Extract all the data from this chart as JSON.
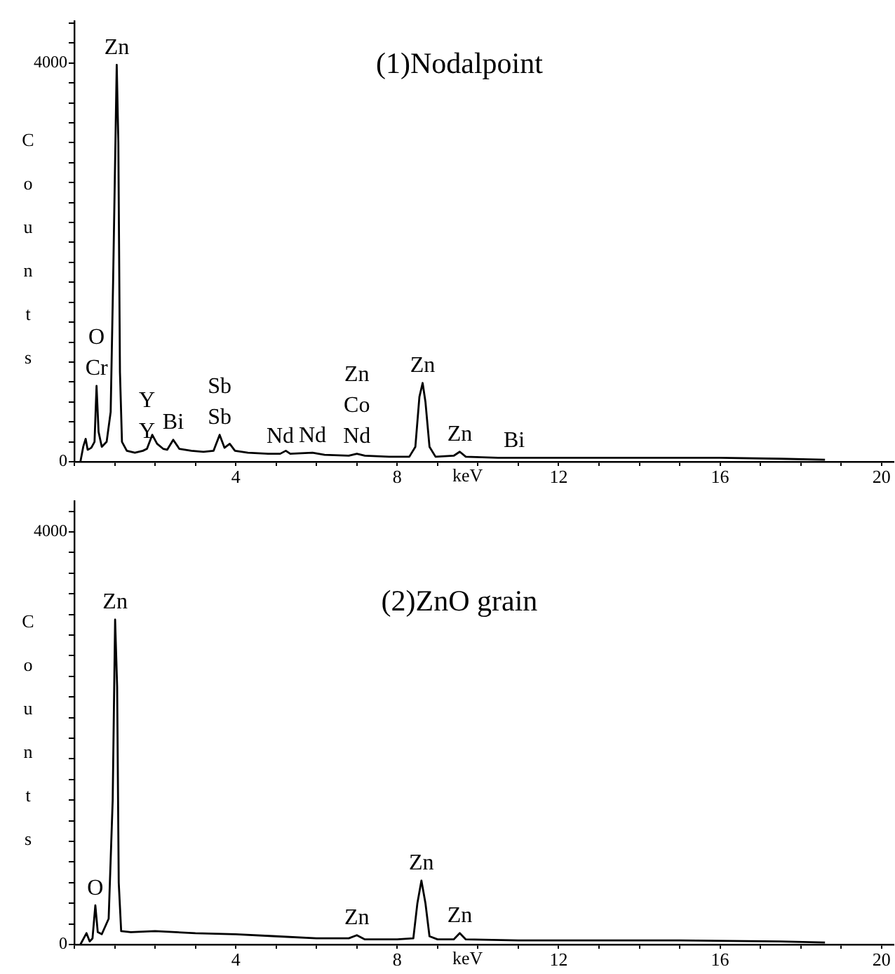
{
  "chart_data": [
    {
      "type": "line",
      "title": "(1)Nodalpoint",
      "xlabel": "keV",
      "ylabel": "Counts",
      "grid": false,
      "legend": false,
      "marker": "none",
      "line_style": "solid",
      "xlim": [
        0,
        20.3
      ],
      "ylim": [
        0,
        4420
      ],
      "xticks": [
        {
          "value": 0,
          "label": null
        },
        {
          "value": 1,
          "label": null
        },
        {
          "value": 2,
          "label": null
        },
        {
          "value": 3,
          "label": null
        },
        4,
        {
          "value": 5,
          "label": null
        },
        {
          "value": 6,
          "label": null
        },
        {
          "value": 7,
          "label": null
        },
        8,
        {
          "value": 9,
          "label": null
        },
        {
          "value": 10,
          "label": null
        },
        {
          "value": 11,
          "label": null
        },
        12,
        {
          "value": 13,
          "label": null
        },
        {
          "value": 14,
          "label": null
        },
        {
          "value": 15,
          "label": null
        },
        16,
        {
          "value": 17,
          "label": null
        },
        {
          "value": 18,
          "label": null
        },
        {
          "value": 19,
          "label": null
        },
        20
      ],
      "yticks": [
        {
          "value": 0,
          "label": "0"
        },
        {
          "value": 200,
          "label": null
        },
        {
          "value": 400,
          "label": null
        },
        {
          "value": 600,
          "label": null
        },
        {
          "value": 800,
          "label": null
        },
        {
          "value": 1000,
          "label": null
        },
        {
          "value": 1200,
          "label": null
        },
        {
          "value": 1400,
          "label": null
        },
        {
          "value": 1600,
          "label": null
        },
        {
          "value": 1800,
          "label": null
        },
        {
          "value": 2000,
          "label": null
        },
        {
          "value": 2200,
          "label": null
        },
        {
          "value": 2400,
          "label": null
        },
        {
          "value": 2600,
          "label": null
        },
        {
          "value": 2800,
          "label": null
        },
        {
          "value": 3000,
          "label": null
        },
        {
          "value": 3200,
          "label": null
        },
        {
          "value": 3400,
          "label": null
        },
        {
          "value": 3600,
          "label": null
        },
        {
          "value": 3800,
          "label": null
        },
        {
          "value": 4000,
          "label": "4000"
        },
        {
          "value": 4200,
          "label": null
        },
        {
          "value": 4400,
          "label": null
        }
      ],
      "series": [
        {
          "color": "#000000",
          "x": [
            0.15,
            0.22,
            0.28,
            0.33,
            0.42,
            0.5,
            0.55,
            0.6,
            0.68,
            0.8,
            0.9,
            0.96,
            1.05,
            1.09,
            1.13,
            1.18,
            1.3,
            1.5,
            1.7,
            1.8,
            1.93,
            2.05,
            2.2,
            2.3,
            2.45,
            2.6,
            2.9,
            3.2,
            3.45,
            3.6,
            3.72,
            3.85,
            3.98,
            4.3,
            4.8,
            5.1,
            5.24,
            5.35,
            5.9,
            6.2,
            6.8,
            7.0,
            7.2,
            7.8,
            8.3,
            8.45,
            8.55,
            8.63,
            8.7,
            8.8,
            8.95,
            9.4,
            9.55,
            9.7,
            10.5,
            10.9,
            12,
            14,
            16,
            17.5,
            18.6
          ],
          "values": [
            0,
            150,
            230,
            120,
            140,
            200,
            760,
            300,
            150,
            200,
            500,
            1800,
            3980,
            3200,
            900,
            200,
            110,
            90,
            110,
            130,
            270,
            180,
            130,
            120,
            220,
            130,
            110,
            100,
            110,
            270,
            140,
            180,
            110,
            90,
            80,
            80,
            110,
            80,
            90,
            70,
            60,
            80,
            60,
            50,
            50,
            150,
            650,
            790,
            600,
            150,
            50,
            60,
            100,
            50,
            40,
            40,
            40,
            40,
            40,
            30,
            20
          ]
        }
      ],
      "annotations": [
        {
          "text": "Zn",
          "x": 1.05,
          "y": 3980
        },
        {
          "text": "Cr",
          "x": 0.55,
          "y": 760
        },
        {
          "text": "O",
          "x": 0.55,
          "y": 760
        },
        {
          "text": "Y",
          "x": 1.8,
          "y": 130
        },
        {
          "text": "Y",
          "x": 1.8,
          "y": 130
        },
        {
          "text": "Bi",
          "x": 2.45,
          "y": 220
        },
        {
          "text": "Sb",
          "x": 3.6,
          "y": 270
        },
        {
          "text": "Sb",
          "x": 3.6,
          "y": 270
        },
        {
          "text": "Nd",
          "x": 5.1,
          "y": 80
        },
        {
          "text": "Nd",
          "x": 5.9,
          "y": 90
        },
        {
          "text": "Nd",
          "x": 7.0,
          "y": 80
        },
        {
          "text": "Co",
          "x": 7.0,
          "y": 80
        },
        {
          "text": "Zn",
          "x": 7.0,
          "y": 80
        },
        {
          "text": "Zn",
          "x": 8.63,
          "y": 790
        },
        {
          "text": "Zn",
          "x": 9.55,
          "y": 100
        },
        {
          "text": "Bi",
          "x": 10.9,
          "y": 40
        }
      ]
    },
    {
      "type": "line",
      "title": "(2)ZnO grain",
      "xlabel": "keV",
      "ylabel": "Counts",
      "grid": false,
      "legend": false,
      "marker": "none",
      "line_style": "solid",
      "xlim": [
        0,
        20.3
      ],
      "ylim": [
        0,
        4300
      ],
      "xticks": [
        {
          "value": 0,
          "label": null
        },
        {
          "value": 1,
          "label": null
        },
        {
          "value": 2,
          "label": null
        },
        {
          "value": 3,
          "label": null
        },
        4,
        {
          "value": 5,
          "label": null
        },
        {
          "value": 6,
          "label": null
        },
        {
          "value": 7,
          "label": null
        },
        8,
        {
          "value": 9,
          "label": null
        },
        {
          "value": 10,
          "label": null
        },
        {
          "value": 11,
          "label": null
        },
        12,
        {
          "value": 13,
          "label": null
        },
        {
          "value": 14,
          "label": null
        },
        {
          "value": 15,
          "label": null
        },
        16,
        {
          "value": 17,
          "label": null
        },
        {
          "value": 18,
          "label": null
        },
        {
          "value": 19,
          "label": null
        },
        20
      ],
      "yticks": [
        {
          "value": 0,
          "label": "0"
        },
        {
          "value": 200,
          "label": null
        },
        {
          "value": 400,
          "label": null
        },
        {
          "value": 600,
          "label": null
        },
        {
          "value": 800,
          "label": null
        },
        {
          "value": 1000,
          "label": null
        },
        {
          "value": 1200,
          "label": null
        },
        {
          "value": 1400,
          "label": null
        },
        {
          "value": 1600,
          "label": null
        },
        {
          "value": 1800,
          "label": null
        },
        {
          "value": 2000,
          "label": null
        },
        {
          "value": 2200,
          "label": null
        },
        {
          "value": 2400,
          "label": null
        },
        {
          "value": 2600,
          "label": null
        },
        {
          "value": 2800,
          "label": null
        },
        {
          "value": 3000,
          "label": null
        },
        {
          "value": 3200,
          "label": null
        },
        {
          "value": 3400,
          "label": null
        },
        {
          "value": 3600,
          "label": null
        },
        {
          "value": 3800,
          "label": null
        },
        {
          "value": 4000,
          "label": "4000"
        },
        {
          "value": 4200,
          "label": null
        }
      ],
      "series": [
        {
          "color": "#000000",
          "x": [
            0.15,
            0.3,
            0.38,
            0.45,
            0.52,
            0.58,
            0.68,
            0.85,
            0.95,
            1.01,
            1.06,
            1.1,
            1.16,
            1.4,
            2,
            3,
            4,
            5,
            6,
            6.8,
            7.0,
            7.2,
            8,
            8.4,
            8.5,
            8.6,
            8.7,
            8.8,
            9,
            9.4,
            9.55,
            9.7,
            11,
            13,
            15,
            17.5,
            18.6
          ],
          "values": [
            0,
            110,
            30,
            60,
            380,
            120,
            100,
            250,
            1400,
            3150,
            2500,
            600,
            130,
            120,
            130,
            110,
            100,
            80,
            60,
            60,
            90,
            50,
            50,
            60,
            400,
            620,
            400,
            80,
            50,
            50,
            110,
            50,
            40,
            40,
            40,
            30,
            20
          ]
        }
      ],
      "annotations": [
        {
          "text": "Zn",
          "x": 1.01,
          "y": 3150
        },
        {
          "text": "O",
          "x": 0.52,
          "y": 380
        },
        {
          "text": "Zn",
          "x": 7.0,
          "y": 90
        },
        {
          "text": "Zn",
          "x": 8.6,
          "y": 620
        },
        {
          "text": "Zn",
          "x": 9.55,
          "y": 110
        }
      ]
    }
  ]
}
